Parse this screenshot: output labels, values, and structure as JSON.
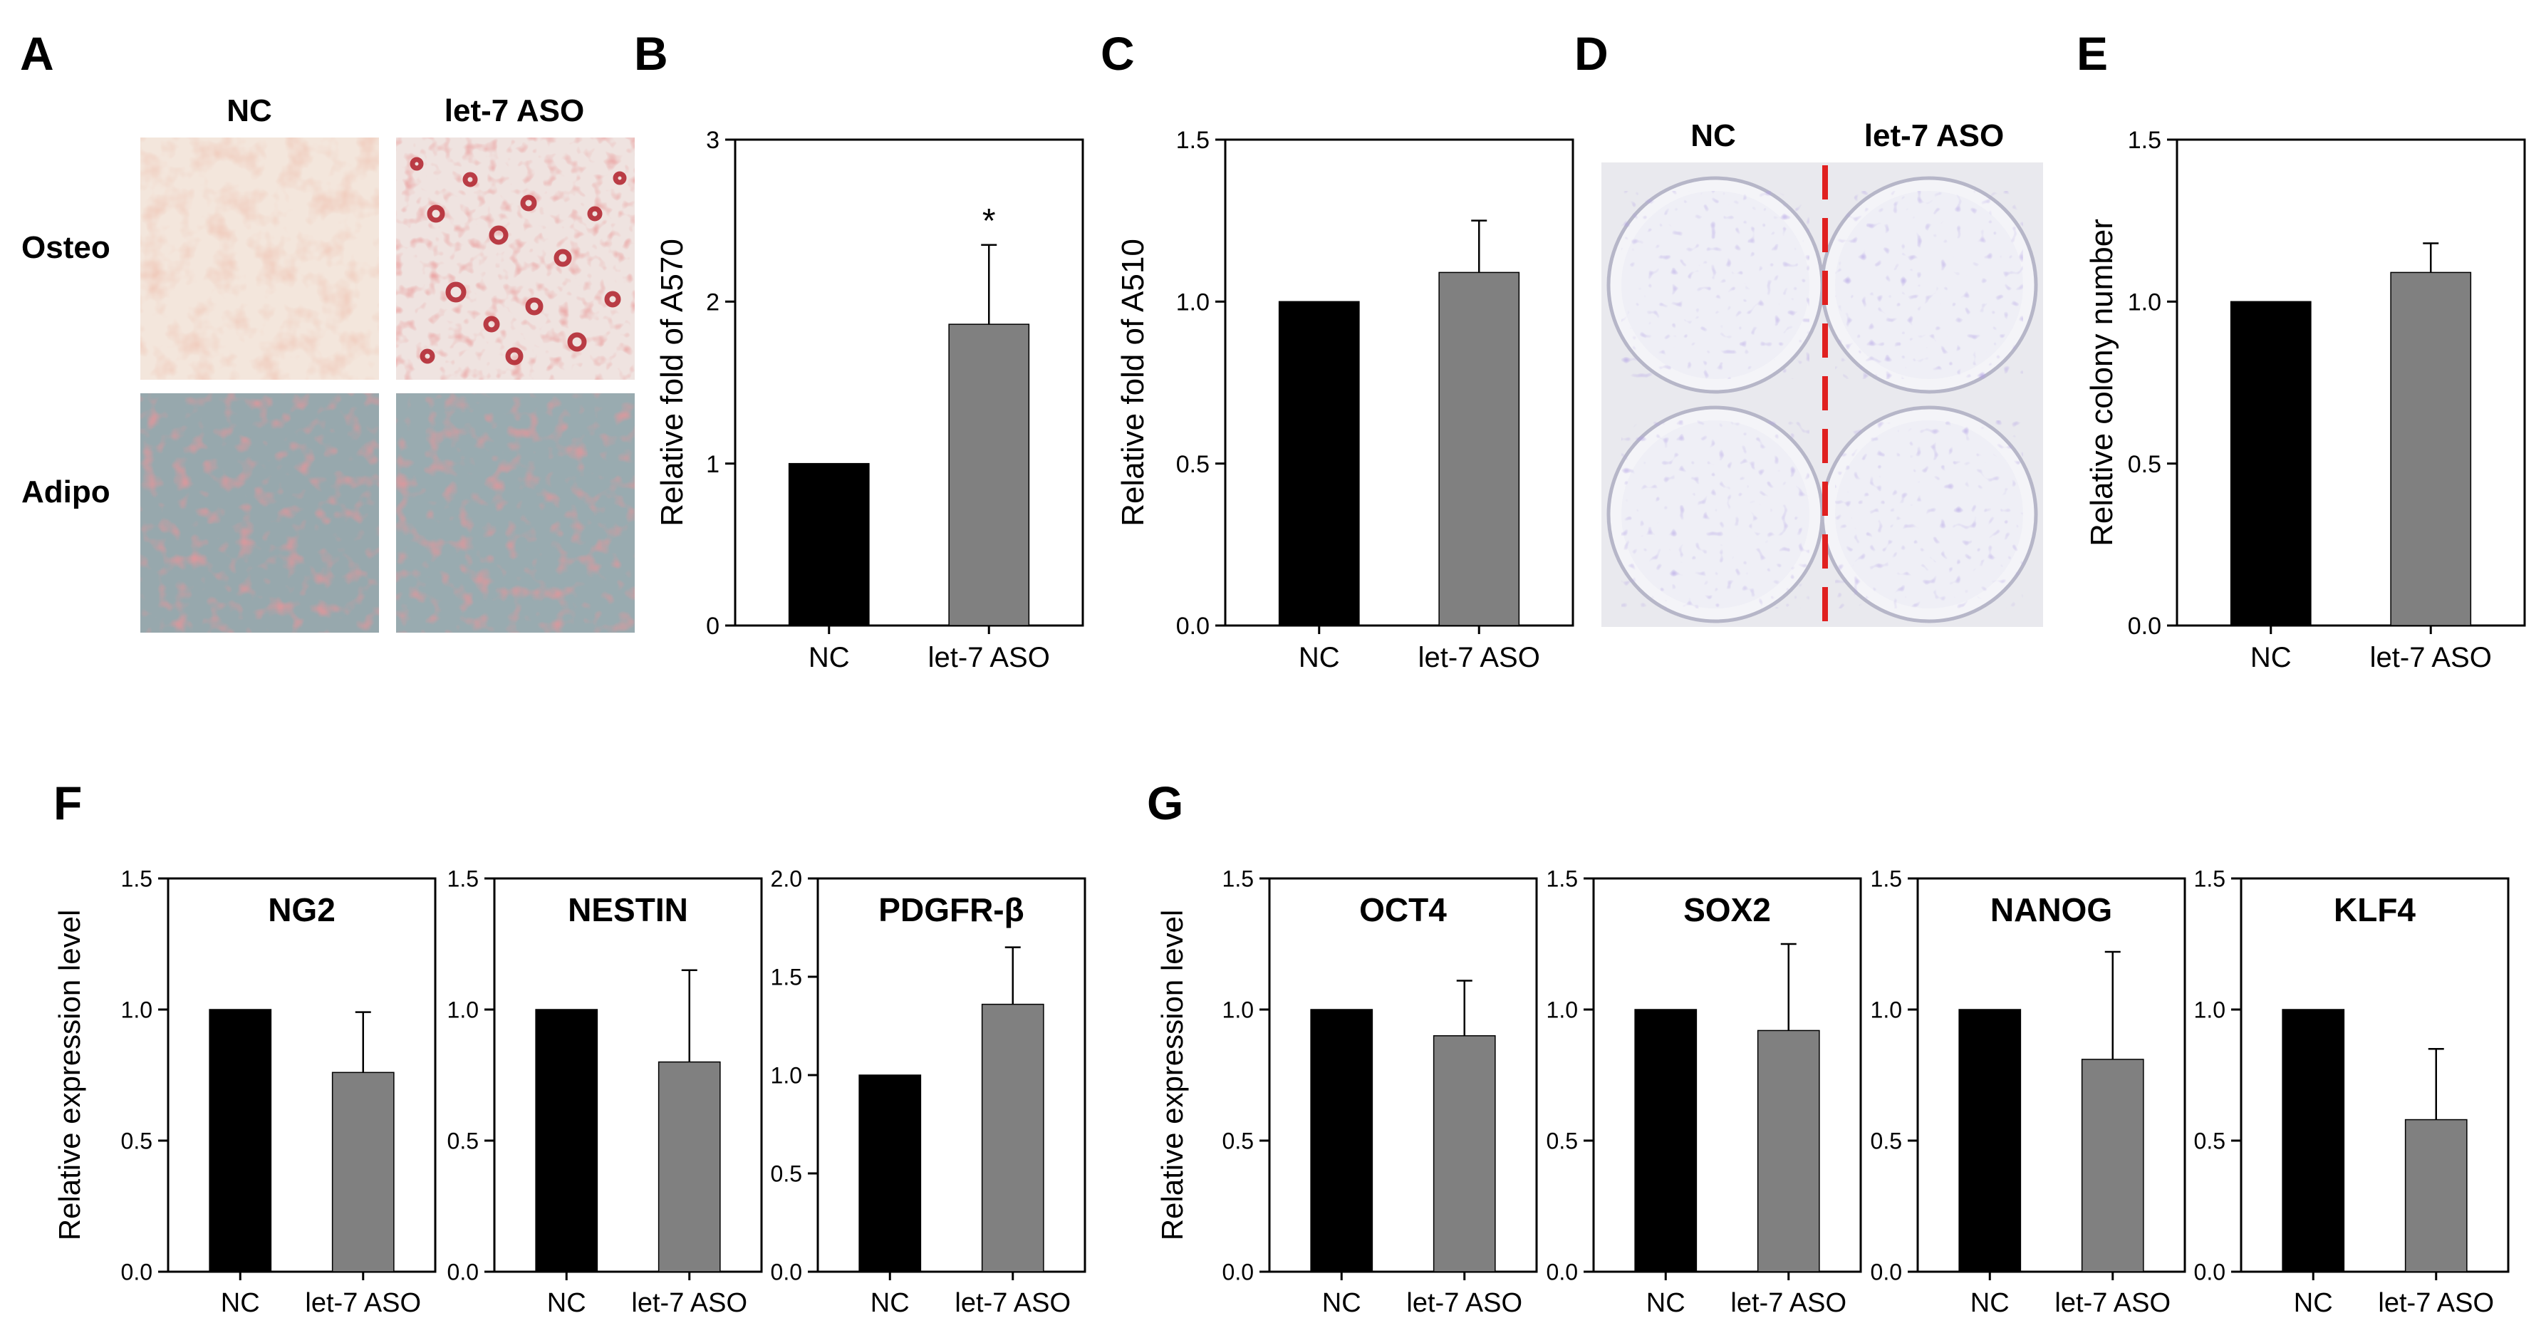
{
  "figure": {
    "panel_letters": [
      "A",
      "B",
      "C",
      "D",
      "E",
      "F",
      "G"
    ],
    "panel_a": {
      "col_labels": [
        "NC",
        "let-7 ASO"
      ],
      "row_labels": [
        "Osteo",
        "Adipo"
      ]
    },
    "panel_d": {
      "col_labels": [
        "NC",
        "let-7 ASO"
      ]
    }
  },
  "colors": {
    "nc": "#000000",
    "aso": "#808080",
    "divider": "#e02020",
    "text": "#000000"
  },
  "chart_data": [
    {
      "id": "B",
      "type": "bar",
      "title": "",
      "ylabel": "Relative fold of A570",
      "categories": [
        "NC",
        "let-7 ASO"
      ],
      "values": [
        1.0,
        1.86
      ],
      "errors": [
        0,
        0.49
      ],
      "ylim": [
        0,
        3
      ],
      "yticks": [
        "0",
        "1",
        "2",
        "3"
      ],
      "annotations": [
        "*"
      ]
    },
    {
      "id": "C",
      "type": "bar",
      "title": "",
      "ylabel": "Relative fold of A510",
      "categories": [
        "NC",
        "let-7 ASO"
      ],
      "values": [
        1.0,
        1.09
      ],
      "errors": [
        0,
        0.16
      ],
      "ylim": [
        0,
        1.5
      ],
      "yticks": [
        "0.0",
        "0.5",
        "1.0",
        "1.5"
      ]
    },
    {
      "id": "E",
      "type": "bar",
      "title": "",
      "ylabel": "Relative colony number",
      "categories": [
        "NC",
        "let-7 ASO"
      ],
      "values": [
        1.0,
        1.09
      ],
      "errors": [
        0,
        0.09
      ],
      "ylim": [
        0,
        1.5
      ],
      "yticks": [
        "0.0",
        "0.5",
        "1.0",
        "1.5"
      ]
    },
    {
      "id": "F1",
      "type": "bar",
      "title": "NG2",
      "ylabel": "Relative expression level",
      "categories": [
        "NC",
        "let-7 ASO"
      ],
      "values": [
        1.0,
        0.76
      ],
      "errors": [
        0,
        0.23
      ],
      "ylim": [
        0,
        1.5
      ],
      "yticks": [
        "0.0",
        "0.5",
        "1.0",
        "1.5"
      ]
    },
    {
      "id": "F2",
      "type": "bar",
      "title": "NESTIN",
      "ylabel": "",
      "categories": [
        "NC",
        "let-7 ASO"
      ],
      "values": [
        1.0,
        0.8
      ],
      "errors": [
        0,
        0.35
      ],
      "ylim": [
        0,
        1.5
      ],
      "yticks": [
        "0.0",
        "0.5",
        "1.0",
        "1.5"
      ]
    },
    {
      "id": "F3",
      "type": "bar",
      "title": "PDGFR-β",
      "ylabel": "",
      "categories": [
        "NC",
        "let-7 ASO"
      ],
      "values": [
        1.0,
        1.36
      ],
      "errors": [
        0,
        0.29
      ],
      "ylim": [
        0,
        2.0
      ],
      "yticks": [
        "0.0",
        "0.5",
        "1.0",
        "1.5",
        "2.0"
      ]
    },
    {
      "id": "G1",
      "type": "bar",
      "title": "OCT4",
      "ylabel": "Relative expression level",
      "categories": [
        "NC",
        "let-7 ASO"
      ],
      "values": [
        1.0,
        0.9
      ],
      "errors": [
        0,
        0.21
      ],
      "ylim": [
        0,
        1.5
      ],
      "yticks": [
        "0.0",
        "0.5",
        "1.0",
        "1.5"
      ]
    },
    {
      "id": "G2",
      "type": "bar",
      "title": "SOX2",
      "ylabel": "",
      "categories": [
        "NC",
        "let-7 ASO"
      ],
      "values": [
        1.0,
        0.92
      ],
      "errors": [
        0,
        0.33
      ],
      "ylim": [
        0,
        1.5
      ],
      "yticks": [
        "0.0",
        "0.5",
        "1.0",
        "1.5"
      ]
    },
    {
      "id": "G3",
      "type": "bar",
      "title": "NANOG",
      "ylabel": "",
      "categories": [
        "NC",
        "let-7 ASO"
      ],
      "values": [
        1.0,
        0.81
      ],
      "errors": [
        0,
        0.41
      ],
      "ylim": [
        0,
        1.5
      ],
      "yticks": [
        "0.0",
        "0.5",
        "1.0",
        "1.5"
      ]
    },
    {
      "id": "G4",
      "type": "bar",
      "title": "KLF4",
      "ylabel": "",
      "categories": [
        "NC",
        "let-7 ASO"
      ],
      "values": [
        1.0,
        0.58
      ],
      "errors": [
        0,
        0.27
      ],
      "ylim": [
        0,
        1.5
      ],
      "yticks": [
        "0.0",
        "0.5",
        "1.0",
        "1.5"
      ]
    }
  ]
}
